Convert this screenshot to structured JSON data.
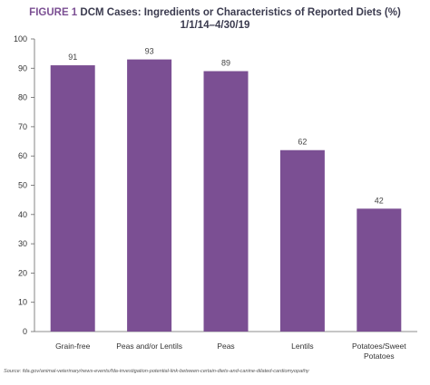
{
  "title": {
    "figure_label": "FIGURE 1",
    "line1": "DCM Cases: Ingredients or Characteristics of Reported Diets (%)",
    "line2": "1/1/14–4/30/19"
  },
  "chart_data": {
    "type": "bar",
    "categories": [
      "Grain-free",
      "Peas and/or Lentils",
      "Peas",
      "Lentils",
      "Potatoes/Sweet Potatoes"
    ],
    "category_label_lines": [
      [
        "Grain-free"
      ],
      [
        "Peas and/or Lentils"
      ],
      [
        "Peas"
      ],
      [
        "Lentils"
      ],
      [
        "Potatoes/Sweet",
        "Potatoes"
      ]
    ],
    "values": [
      91,
      93,
      89,
      62,
      42
    ],
    "data_labels": [
      "91",
      "93",
      "89",
      "62",
      "42"
    ],
    "ylim": [
      0,
      100
    ],
    "yticks": [
      0,
      10,
      20,
      30,
      40,
      50,
      60,
      70,
      80,
      90,
      100
    ],
    "xlabel": "",
    "ylabel": "",
    "grid": false,
    "legend": "none",
    "bar_color": "#7b4f93"
  },
  "source": "Source: fda.gov/animal-veterinary/news-events/fda-investigation-potential-link-between-certain-diets-and-canine-dilated-cardiomyopathy"
}
